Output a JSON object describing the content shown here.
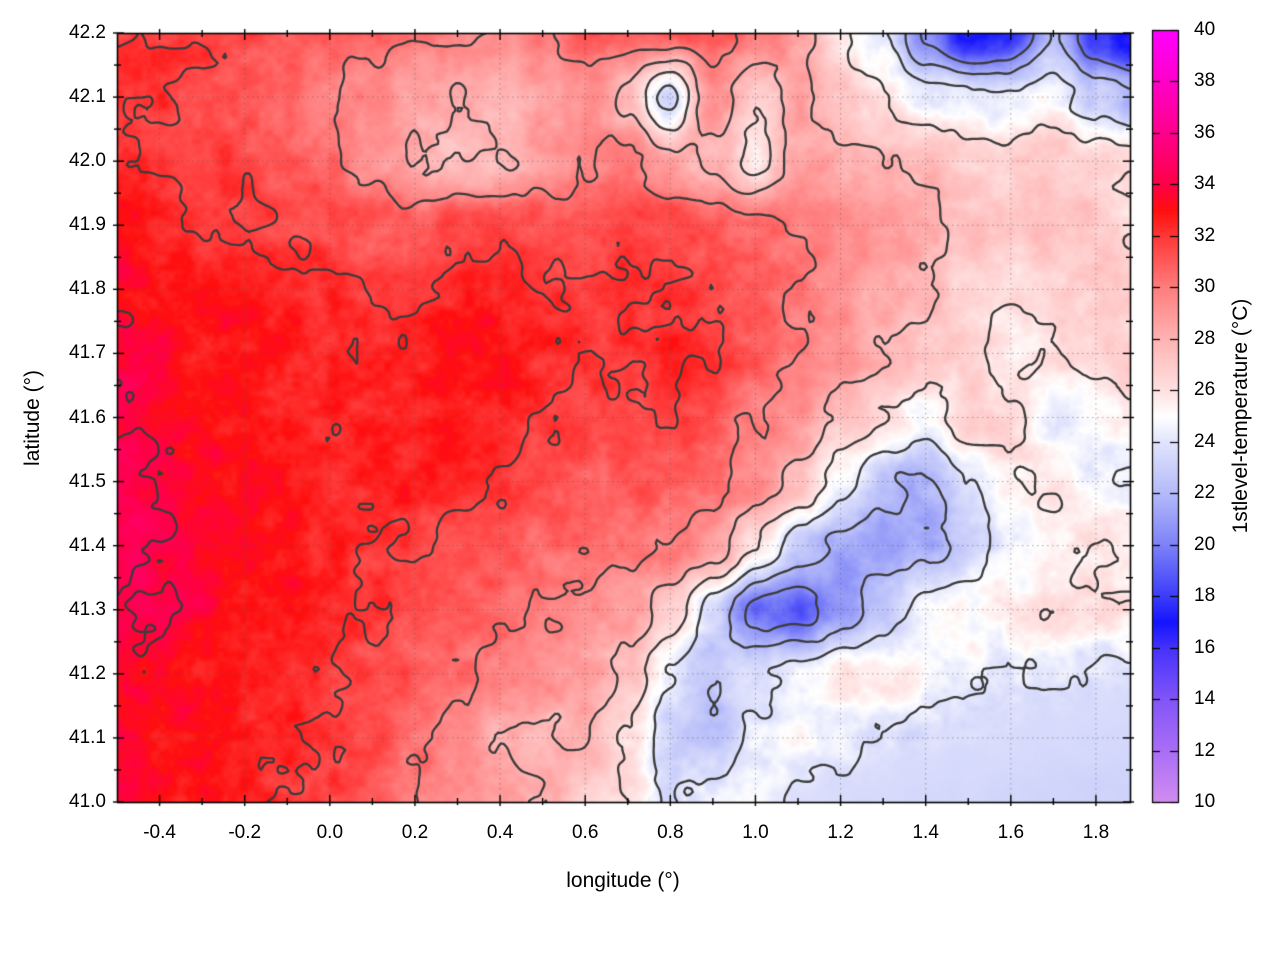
{
  "chart_data": {
    "type": "heatmap",
    "title": "",
    "xlabel": "longitude (°)",
    "ylabel": "latitude (°)",
    "colorbar_label": "1stlevel-temperature (°C)",
    "xlim": [
      -0.5,
      1.88
    ],
    "ylim": [
      41.0,
      42.2
    ],
    "clim": [
      10,
      40
    ],
    "grid": "dotted",
    "legend_position": "colorbar-right",
    "x_ticks": {
      "values": [
        -0.4,
        -0.2,
        0.0,
        0.2,
        0.4,
        0.6,
        0.8,
        1.0,
        1.2,
        1.4,
        1.6,
        1.8
      ],
      "labels": [
        "-0.4",
        "-0.2",
        "0.0",
        "0.2",
        "0.4",
        "0.6",
        "0.8",
        "1.0",
        "1.2",
        "1.4",
        "1.6",
        "1.8"
      ]
    },
    "x_minor_ticks": [
      -0.3,
      -0.1,
      0.1,
      0.3,
      0.5,
      0.7,
      0.9,
      1.1,
      1.3,
      1.5,
      1.7
    ],
    "y_ticks": {
      "values": [
        42.2,
        42.1,
        42.0,
        41.9,
        41.8,
        41.7,
        41.6,
        41.5,
        41.4,
        41.3,
        41.2,
        41.1,
        41.0
      ],
      "labels": [
        "42.2",
        "42.1",
        "42.0",
        "41.9",
        "41.8",
        "41.7",
        "41.6",
        "41.5",
        "41.4",
        "41.3",
        "41.2",
        "41.1",
        "41.0"
      ]
    },
    "y_minor_ticks": [
      42.15,
      42.05,
      41.95,
      41.85,
      41.75,
      41.65,
      41.55,
      41.45,
      41.35,
      41.25,
      41.15,
      41.05
    ],
    "colorbar_ticks": {
      "values": [
        40,
        38,
        36,
        34,
        32,
        30,
        28,
        26,
        24,
        22,
        20,
        18,
        16,
        14,
        12,
        10
      ],
      "labels": [
        "40",
        "38",
        "36",
        "34",
        "32",
        "30",
        "28",
        "26",
        "24",
        "22",
        "20",
        "18",
        "16",
        "14",
        "12",
        "10"
      ]
    },
    "contour_levels": [
      20,
      22,
      24,
      26,
      28,
      30,
      32,
      34
    ],
    "contour_color": "#3c3c3c",
    "palette_stops": [
      {
        "t": 10,
        "c": "#d28cf0"
      },
      {
        "t": 12,
        "c": "#aa6ef5"
      },
      {
        "t": 14,
        "c": "#8255f8"
      },
      {
        "t": 16,
        "c": "#4632fc"
      },
      {
        "t": 17,
        "c": "#1414ff"
      },
      {
        "t": 18,
        "c": "#3c3cfa"
      },
      {
        "t": 20,
        "c": "#7d82f7"
      },
      {
        "t": 22,
        "c": "#b4baf9"
      },
      {
        "t": 24,
        "c": "#e1e4fc"
      },
      {
        "t": 25,
        "c": "#ffffff"
      },
      {
        "t": 26,
        "c": "#ffe1e1"
      },
      {
        "t": 28,
        "c": "#ffb3b3"
      },
      {
        "t": 30,
        "c": "#ff7d7d"
      },
      {
        "t": 32,
        "c": "#ff3737"
      },
      {
        "t": 33,
        "c": "#ff0f0f"
      },
      {
        "t": 34,
        "c": "#ff0046"
      },
      {
        "t": 36,
        "c": "#ff008c"
      },
      {
        "t": 38,
        "c": "#ff00c8"
      },
      {
        "t": 40,
        "c": "#ff00ff"
      }
    ],
    "grid_lon": [
      -0.5,
      -0.4,
      -0.3,
      -0.2,
      -0.1,
      0.0,
      0.1,
      0.2,
      0.3,
      0.4,
      0.5,
      0.6,
      0.7,
      0.8,
      0.9,
      1.0,
      1.1,
      1.2,
      1.3,
      1.4,
      1.5,
      1.6,
      1.7,
      1.8,
      1.9
    ],
    "grid_lat": [
      42.2,
      42.1,
      42.0,
      41.9,
      41.8,
      41.7,
      41.6,
      41.5,
      41.4,
      41.3,
      41.2,
      41.1,
      41.0
    ],
    "values": [
      [
        32,
        32,
        32,
        31.5,
        31,
        31,
        30.5,
        30,
        30,
        29.5,
        30,
        31,
        31,
        31,
        31,
        30,
        29,
        26,
        24,
        20,
        17,
        17.5,
        22,
        18,
        16.5
      ],
      [
        32,
        32,
        31.5,
        31,
        30.5,
        30,
        29.5,
        28.5,
        28,
        28,
        28.5,
        29.5,
        27.5,
        23.5,
        29.5,
        26.5,
        28.5,
        27,
        26,
        24.5,
        24,
        24.5,
        25,
        23,
        22
      ],
      [
        32.5,
        32,
        32,
        31.5,
        31,
        30.5,
        29.5,
        28,
        27.5,
        28,
        29,
        30,
        30.5,
        28.5,
        28,
        25.5,
        28.5,
        28.5,
        28,
        27.5,
        27,
        26.5,
        27,
        26.5,
        26
      ],
      [
        33,
        32.5,
        32,
        32,
        31.5,
        31.5,
        31,
        31,
        31.5,
        31.5,
        31,
        31,
        31.5,
        31.5,
        31,
        30.5,
        30,
        29.5,
        29,
        28.5,
        27.5,
        27,
        27.5,
        27,
        26
      ],
      [
        33.5,
        33,
        33,
        33,
        32.5,
        32.5,
        32,
        32,
        32.5,
        32.5,
        32,
        32,
        32,
        32,
        31.5,
        31,
        30,
        29,
        28.5,
        28,
        26.5,
        26,
        26.5,
        27,
        26.5
      ],
      [
        34,
        33.5,
        33,
        33,
        33,
        32.5,
        32.5,
        32.5,
        33,
        33,
        32.5,
        32,
        32,
        32.5,
        32,
        31,
        30,
        29,
        28,
        27,
        26.5,
        25.5,
        26,
        26.5,
        27
      ],
      [
        34,
        33.5,
        33,
        33,
        32.5,
        32.5,
        32.5,
        32.5,
        33,
        32.5,
        32,
        31.5,
        31.5,
        32,
        31,
        30,
        29,
        27.5,
        26,
        25,
        27,
        26.5,
        24.5,
        25,
        25.5
      ],
      [
        34.5,
        34,
        33.5,
        33,
        33,
        32.5,
        32.5,
        32.5,
        32.5,
        32,
        31.5,
        31,
        31,
        31,
        30.5,
        29.5,
        27.5,
        25,
        22.5,
        21.5,
        24,
        25.5,
        26,
        24.5,
        24
      ],
      [
        34.5,
        34,
        33.5,
        33.5,
        33,
        32.5,
        32,
        32,
        31.5,
        31,
        30.5,
        30.5,
        30.5,
        30,
        29,
        26,
        23,
        21.5,
        21,
        21.5,
        23,
        24.5,
        25.5,
        26,
        25.5
      ],
      [
        34,
        34,
        33.5,
        33,
        33,
        32.5,
        32,
        31.5,
        31,
        30.5,
        30,
        29.5,
        29,
        27,
        23.5,
        19.5,
        19,
        21,
        23,
        24.5,
        25.5,
        25.5,
        26,
        26,
        26
      ],
      [
        33.5,
        33.5,
        33,
        33,
        32.5,
        32,
        31.5,
        31,
        30.5,
        30,
        29.5,
        29,
        27.5,
        24,
        22.5,
        23.5,
        24.5,
        25.5,
        25.5,
        25,
        24.5,
        24,
        23.8,
        23.7,
        23.6
      ],
      [
        33.5,
        33,
        33,
        32.5,
        32.5,
        32,
        31.5,
        30.5,
        29.5,
        28,
        27.5,
        28,
        26,
        23,
        22.5,
        24.5,
        25,
        24.2,
        23.8,
        23.7,
        23.6,
        23.6,
        23.5,
        23.5,
        23.4
      ],
      [
        33.5,
        33,
        33,
        32.5,
        32,
        31.5,
        31,
        30,
        29,
        28.5,
        28,
        27,
        26,
        24,
        24.5,
        24.5,
        23.8,
        23.6,
        23.5,
        23.4,
        23.4,
        23.3,
        23.3,
        23.2,
        23.2
      ]
    ]
  }
}
